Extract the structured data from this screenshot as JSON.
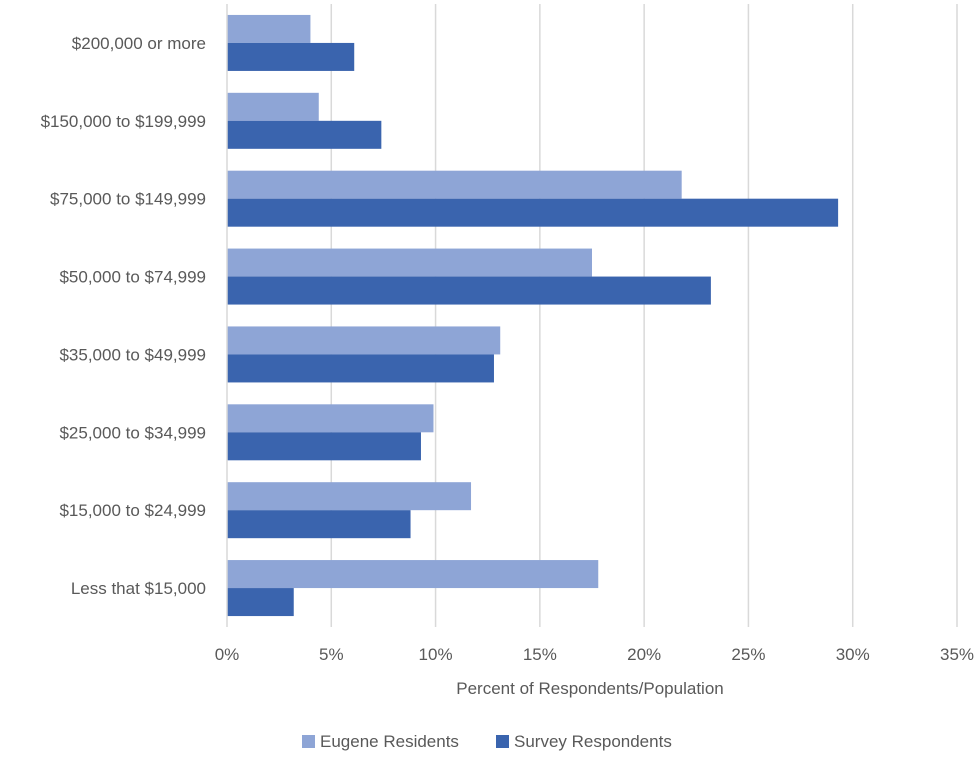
{
  "chart_data": {
    "type": "bar",
    "orientation": "horizontal",
    "title": "",
    "xlabel": "Percent of  Respondents/Population",
    "ylabel": "",
    "xlim": [
      0,
      35
    ],
    "x_ticks": [
      "0%",
      "5%",
      "10%",
      "15%",
      "20%",
      "25%",
      "30%",
      "35%"
    ],
    "grid": "vertical",
    "legend_position": "bottom",
    "categories": [
      "$200,000 or more",
      "$150,000 to $199,999",
      "$75,000 to $149,999",
      "$50,000 to $74,999",
      "$35,000 to $49,999",
      "$25,000 to $34,999",
      "$15,000 to $24,999",
      "Less that $15,000"
    ],
    "series": [
      {
        "name": "Eugene Residents",
        "color": "#8EA5D6",
        "values": [
          4.0,
          4.4,
          21.8,
          17.5,
          13.1,
          9.9,
          11.7,
          17.8
        ]
      },
      {
        "name": "Survey Respondents",
        "color": "#3A64AE",
        "values": [
          6.1,
          7.4,
          29.3,
          23.2,
          12.8,
          9.3,
          8.8,
          3.2
        ]
      }
    ]
  }
}
